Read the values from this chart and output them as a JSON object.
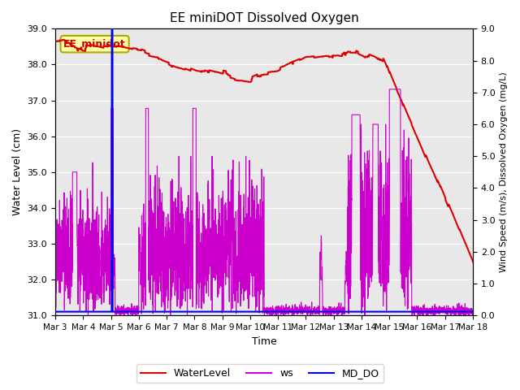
{
  "title": "EE miniDOT Dissolved Oxygen",
  "xlabel": "Time",
  "ylabel_left": "Water Level (cm)",
  "ylabel_right": "Wind Speed (m/s), Dissolved Oxygen (mg/L)",
  "ylim_left": [
    31.0,
    39.0
  ],
  "ylim_right": [
    0.0,
    9.0
  ],
  "annotation_text": "EE_minidot",
  "background_color": "#e8e8e8",
  "legend_entries": [
    "WaterLevel",
    "ws",
    "MD_DO"
  ],
  "water_level_color": "#dd0000",
  "ws_color": "#cc00cc",
  "md_do_color": "#0000ee",
  "xtick_labels": [
    "Mar 3",
    "Mar 4",
    "Mar 5",
    "Mar 6",
    "Mar 7",
    "Mar 8",
    "Mar 9",
    "Mar 10",
    "Mar 11",
    "Mar 12",
    "Mar 13",
    "Mar 14",
    "Mar 15",
    "Mar 16",
    "Mar 17",
    "Mar 18"
  ],
  "yticks_left": [
    31.0,
    32.0,
    33.0,
    34.0,
    35.0,
    36.0,
    37.0,
    38.0,
    39.0
  ],
  "yticks_right": [
    0.0,
    1.0,
    2.0,
    3.0,
    4.0,
    5.0,
    6.0,
    7.0,
    8.0,
    9.0
  ]
}
